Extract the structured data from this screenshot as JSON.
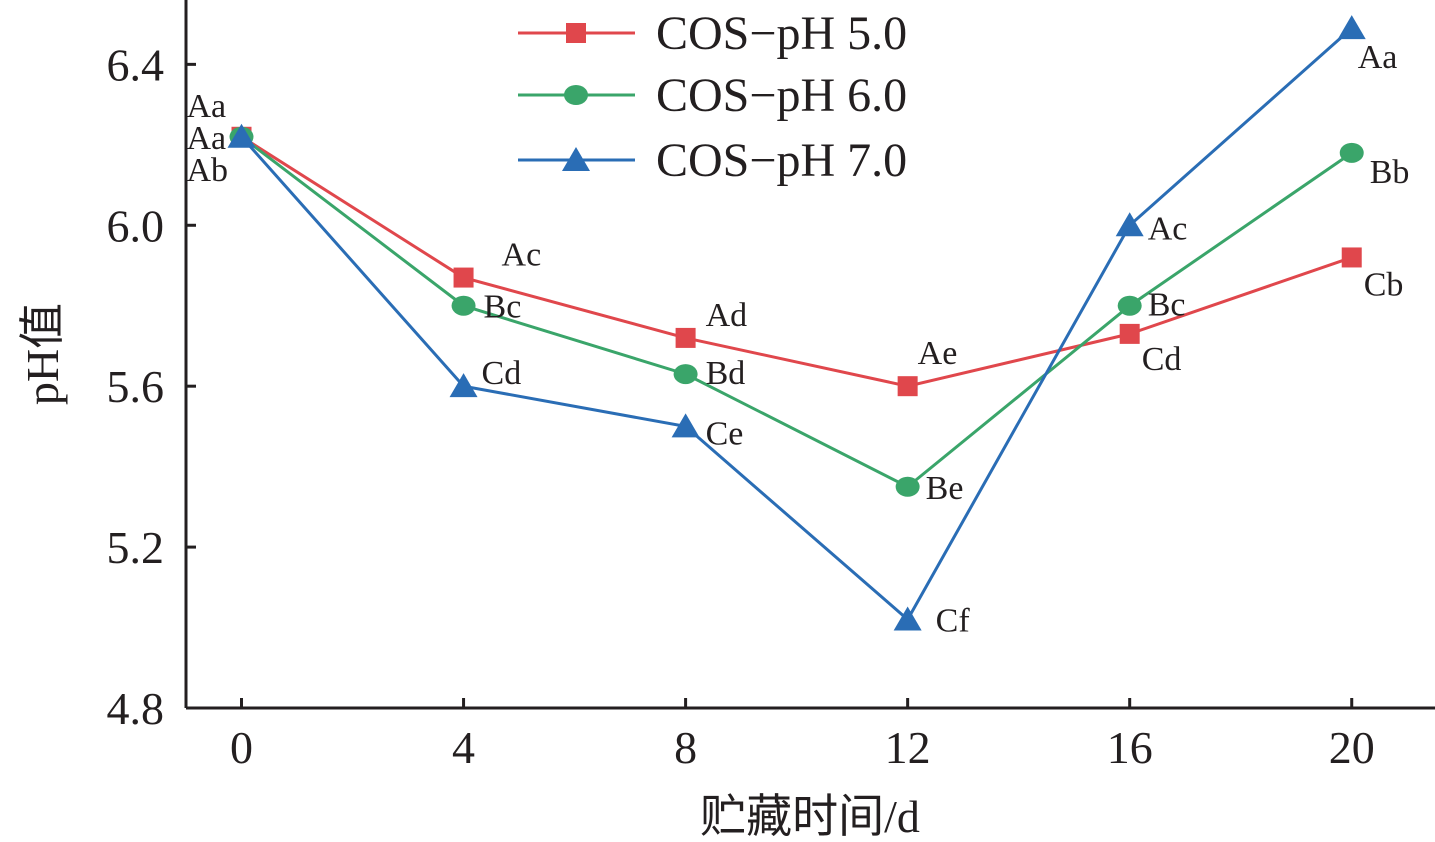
{
  "chart_data": {
    "type": "line",
    "title": "",
    "xlabel": "贮藏时间/d",
    "ylabel": "pH值",
    "x": [
      0,
      4,
      8,
      12,
      16,
      20
    ],
    "x_tick_labels": [
      "0",
      "4",
      "8",
      "12",
      "16",
      "20"
    ],
    "y_tick_labels": [
      "4.8",
      "5.2",
      "5.6",
      "6.0",
      "6.4"
    ],
    "y_ticks": [
      4.8,
      5.2,
      5.6,
      6.0,
      6.4
    ],
    "xlim": [
      -1,
      21.5
    ],
    "ylim": [
      4.8,
      6.56
    ],
    "grid": false,
    "legend_position": "top-center",
    "series": [
      {
        "name": "COS−pH 5.0",
        "color": "#e0474c",
        "marker": "square",
        "values": [
          6.22,
          5.87,
          5.72,
          5.6,
          5.73,
          5.92
        ],
        "point_labels": [
          "Aa",
          "Ac",
          "Ad",
          "Ae",
          "Cd",
          "Cb"
        ]
      },
      {
        "name": "COS−pH 6.0",
        "color": "#3aa56a",
        "marker": "circle",
        "values": [
          6.22,
          5.8,
          5.63,
          5.35,
          5.8,
          6.18
        ],
        "point_labels": [
          "Aa",
          "Bc",
          "Bd",
          "Be",
          "Bc",
          "Bb"
        ]
      },
      {
        "name": "COS−pH 7.0",
        "color": "#2a6db5",
        "marker": "triangle",
        "values": [
          6.22,
          5.6,
          5.5,
          5.02,
          6.0,
          6.49
        ],
        "point_labels": [
          "Ab",
          "Cd",
          "Ce",
          "Cf",
          "Ac",
          "Aa"
        ]
      }
    ]
  }
}
